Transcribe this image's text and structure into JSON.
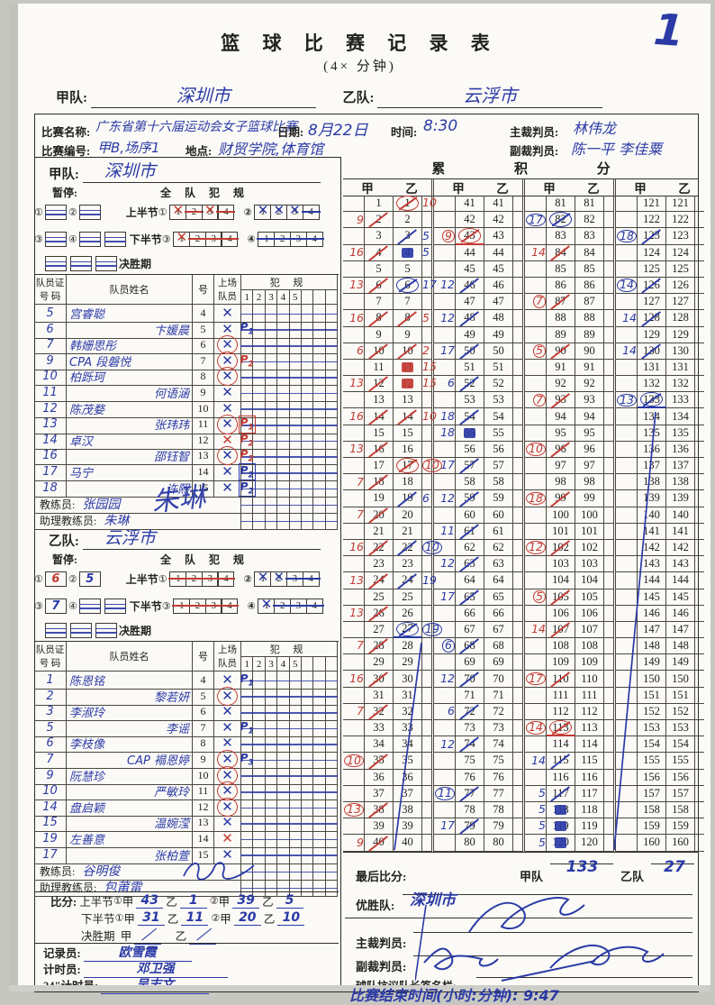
{
  "page": {
    "number": "1"
  },
  "header": {
    "title": "篮 球 比 赛 记 录 表",
    "subtitle": "(4×    分钟)",
    "team_a_label": "甲队:",
    "team_a": "深圳市",
    "team_b_label": "乙队:",
    "team_b": "云浮市"
  },
  "match_info": {
    "name_label": "比赛名称:",
    "name": "广东省第十六届运动会女子篮球比赛",
    "date_label": "日期:",
    "date": "8月22日",
    "time_label": "时间:",
    "time": "8:30",
    "referee_label": "主裁判员:",
    "referee": "林伟龙",
    "number_label": "比赛编号:",
    "number": "甲B,场序1",
    "venue_label": "地点:",
    "venue": "财贸学院,体育馆",
    "umpire_label": "副裁判员:",
    "umpire": "陈一平  李佳粟"
  },
  "labels": {
    "timeout": "暂停:",
    "team_fouls": "全 队 犯 规",
    "half1": "上半节",
    "half2": "下半节",
    "c1": "①",
    "c2": "②",
    "c3": "③",
    "c4": "④",
    "ot": "决胜期",
    "coach": "教练员:",
    "assistant": "助理教练员:"
  },
  "roster_headers": {
    "cert1": "队员证",
    "cert2": "号 码",
    "name": "队员姓名",
    "num": "号",
    "played1": "上场",
    "played2": "队员",
    "fouls": "犯  规",
    "foul_cols": [
      "1",
      "2",
      "3",
      "4",
      "5",
      "",
      "",
      ""
    ]
  },
  "team_a": {
    "label": "甲队:",
    "name": "深圳市",
    "timeouts_r1": [
      {
        "v": "",
        "struck": true
      },
      {
        "v": "",
        "struck": true
      }
    ],
    "timeouts_r2": [
      {
        "v": "",
        "struck": true
      },
      {
        "v": "",
        "struck": true
      },
      {
        "v": "",
        "struck": true
      }
    ],
    "timeouts_ot": [
      {
        "v": "",
        "struck": true
      },
      {
        "v": "",
        "struck": true
      },
      {
        "v": "",
        "struck": true
      }
    ],
    "team_fouls_q1": [
      "xr",
      "-r",
      "xr",
      "-r"
    ],
    "team_fouls_q2": [
      "xb",
      "xb",
      "xb",
      "-b"
    ],
    "team_fouls_q3": [
      "xr",
      "-r",
      "-r",
      "-r"
    ],
    "team_fouls_q4": [
      "-b",
      "-b",
      "-b",
      "-b"
    ],
    "players": [
      {
        "cert": "5",
        "name": "宫睿聪",
        "num": "4",
        "x": "b",
        "ring": false,
        "foul": "",
        "fc": "",
        "fb": false,
        "align": "l"
      },
      {
        "cert": "6",
        "name": "卞媛晨",
        "num": "5",
        "x": "b",
        "ring": false,
        "foul": "P1",
        "fc": "b",
        "fb": false,
        "align": "r"
      },
      {
        "cert": "7",
        "name": "韩姗思彤",
        "num": "6",
        "x": "b",
        "ring": true,
        "foul": "",
        "fc": "",
        "fb": false,
        "align": "l"
      },
      {
        "cert": "9",
        "name": "CPA 段磐悦",
        "num": "7",
        "x": "b",
        "ring": true,
        "foul": "P2",
        "fc": "r",
        "fb": false,
        "align": "l"
      },
      {
        "cert": "10",
        "name": "柏跞珂",
        "num": "8",
        "x": "b",
        "ring": true,
        "foul": "",
        "fc": "",
        "fb": false,
        "align": "l"
      },
      {
        "cert": "11",
        "name": "何语涵",
        "num": "9",
        "x": "b",
        "ring": false,
        "foul": "",
        "fc": "",
        "fb": false,
        "align": "r"
      },
      {
        "cert": "12",
        "name": "陈茂婺",
        "num": "10",
        "x": "b",
        "ring": false,
        "foul": "",
        "fc": "",
        "fb": false,
        "align": "l"
      },
      {
        "cert": "13",
        "name": "张玮玮",
        "num": "11",
        "x": "b",
        "ring": true,
        "foul": "P1",
        "fc": "r",
        "fb": true,
        "align": "r"
      },
      {
        "cert": "14",
        "name": "卓汉",
        "num": "12",
        "x": "r",
        "ring": false,
        "foul": "P2",
        "fc": "r",
        "fb": false,
        "align": "l"
      },
      {
        "cert": "16",
        "name": "邵钰智",
        "num": "13",
        "x": "b",
        "ring": true,
        "foul": "P2",
        "fc": "r",
        "fb": false,
        "align": "r"
      },
      {
        "cert": "17",
        "name": "马宁",
        "num": "14",
        "x": "b",
        "ring": false,
        "foul": "P2",
        "fc": "b",
        "fb": true,
        "align": "l"
      },
      {
        "cert": "18",
        "name": "许熙",
        "num": "15",
        "x": "b",
        "ring": false,
        "foul": "P2",
        "fc": "b",
        "fb": true,
        "align": "r"
      }
    ],
    "coach": "张园园",
    "assistant": "朱琳",
    "signature": "朱琳"
  },
  "team_b": {
    "label": "乙队:",
    "name": "云浮市",
    "timeouts_r1": [
      {
        "v": "6",
        "c": "r",
        "struck": false
      },
      {
        "v": "5",
        "c": "b",
        "struck": false
      }
    ],
    "timeouts_r2": [
      {
        "v": "7",
        "c": "b",
        "struck": false
      },
      {
        "v": "",
        "struck": true
      },
      {
        "v": "",
        "struck": true
      }
    ],
    "timeouts_ot": [
      {
        "v": "",
        "struck": true
      },
      {
        "v": "",
        "struck": true
      },
      {
        "v": "",
        "struck": true
      }
    ],
    "team_fouls_q1": [
      "-r",
      "-r",
      "-r",
      "-r"
    ],
    "team_fouls_q2": [
      "xb",
      "xb",
      "-b",
      "-b"
    ],
    "team_fouls_q3": [
      "-r",
      "-r",
      "-r",
      "-r"
    ],
    "team_fouls_q4": [
      "xb",
      "-b",
      "-b",
      "-b"
    ],
    "players": [
      {
        "cert": "1",
        "name": "陈恩铭",
        "num": "4",
        "x": "b",
        "ring": false,
        "foul": "P1",
        "fc": "b",
        "fb": false,
        "align": "l"
      },
      {
        "cert": "2",
        "name": "黎若妍",
        "num": "5",
        "x": "b",
        "ring": true,
        "foul": "",
        "fc": "",
        "fb": false,
        "align": "r"
      },
      {
        "cert": "3",
        "name": "李淑玲",
        "num": "6",
        "x": "b",
        "ring": false,
        "foul": "",
        "fc": "",
        "fb": false,
        "align": "l"
      },
      {
        "cert": "5",
        "name": "李谣",
        "num": "7",
        "x": "b",
        "ring": false,
        "foul": "P1",
        "fc": "b",
        "fb": false,
        "align": "r"
      },
      {
        "cert": "6",
        "name": "李枝像",
        "num": "8",
        "x": "b",
        "ring": false,
        "foul": "",
        "fc": "",
        "fb": false,
        "align": "l"
      },
      {
        "cert": "7",
        "name": "CAP 褟恩婷",
        "num": "9",
        "x": "b",
        "ring": true,
        "foul": "P3",
        "fc": "b",
        "fb": false,
        "align": "r"
      },
      {
        "cert": "9",
        "name": "阮慧珍",
        "num": "10",
        "x": "b",
        "ring": true,
        "foul": "",
        "fc": "",
        "fb": false,
        "align": "l"
      },
      {
        "cert": "10",
        "name": "严敏玲",
        "num": "11",
        "x": "b",
        "ring": true,
        "foul": "",
        "fc": "",
        "fb": false,
        "align": "r"
      },
      {
        "cert": "14",
        "name": "盘启颖",
        "num": "12",
        "x": "b",
        "ring": true,
        "foul": "",
        "fc": "",
        "fb": false,
        "align": "l"
      },
      {
        "cert": "15",
        "name": "温婉滢",
        "num": "13",
        "x": "b",
        "ring": false,
        "foul": "",
        "fc": "",
        "fb": false,
        "align": "r"
      },
      {
        "cert": "19",
        "name": "左善意",
        "num": "14",
        "x": "r",
        "ring": false,
        "foul": "",
        "fc": "",
        "fb": false,
        "align": "l"
      },
      {
        "cert": "17",
        "name": "张柏萱",
        "num": "15",
        "x": "b",
        "ring": false,
        "foul": "",
        "fc": "",
        "fb": false,
        "align": "r"
      }
    ],
    "coach": "谷明俊",
    "assistant": "包莆雷",
    "signature": ""
  },
  "score_table": {
    "title": "累  积  分",
    "col_a": "甲",
    "col_b": "乙",
    "marks": {
      "1": {
        "b": "cr",
        "r": "10",
        "rc": "r"
      },
      "2": {
        "l": "9",
        "lc": "r",
        "a": "sr"
      },
      "3": {
        "b": "sb",
        "r": "5",
        "rc": "b"
      },
      "4": {
        "l": "16",
        "lc": "r",
        "a": "sr",
        "b": "fb",
        "r": "5",
        "rc": "b"
      },
      "6": {
        "l": "13",
        "lc": "r",
        "a": "sr",
        "b": "cb",
        "r": "17",
        "rc": "b"
      },
      "8": {
        "l": "16",
        "lc": "r",
        "a": "sr",
        "b": "sr",
        "r": "5",
        "rc": "r"
      },
      "10": {
        "l": "6",
        "lc": "r",
        "a": "sr",
        "b": "sr",
        "r": "2",
        "rc": "r"
      },
      "11": {
        "b": "fr",
        "r": "15",
        "rc": "r"
      },
      "12": {
        "l": "13",
        "lc": "r",
        "a": "sr",
        "b": "fr",
        "r": "15",
        "rc": "r"
      },
      "14": {
        "l": "16",
        "lc": "r",
        "a": "sr",
        "b": "sr",
        "r": "10",
        "rc": "r"
      },
      "16": {
        "l": "13",
        "lc": "r",
        "a": "sr"
      },
      "17": {
        "b": "cr",
        "r": "10",
        "rc": "r",
        "ro": true
      },
      "18": {
        "l": "7",
        "lc": "r",
        "a": "sr"
      },
      "19": {
        "b": "sb",
        "r": "6",
        "rc": "b"
      },
      "20": {
        "l": "7",
        "lc": "r",
        "a": "sr"
      },
      "22": {
        "l": "16",
        "lc": "r",
        "a": "sr",
        "b": "sb",
        "r": "10",
        "rc": "b",
        "ro": true
      },
      "24": {
        "l": "13",
        "lc": "r",
        "a": "sr",
        "b": "sb",
        "r": "19",
        "rc": "b"
      },
      "26": {
        "l": "13",
        "lc": "r",
        "a": "sr"
      },
      "27": {
        "b": "cb",
        "r": "19",
        "rc": "b",
        "ro": true,
        "u": "b",
        "us": "b"
      },
      "28": {
        "l": "7",
        "lc": "r",
        "a": "sr"
      },
      "30": {
        "l": "16",
        "lc": "r",
        "a": "sr"
      },
      "32": {
        "l": "7",
        "lc": "r",
        "a": "sr"
      },
      "35": {
        "l": "10",
        "lc": "r",
        "lo": true,
        "a": "sr"
      },
      "38": {
        "l": "13",
        "lc": "r",
        "lo": true,
        "a": "sr"
      },
      "40": {
        "l": "9",
        "lc": "r",
        "a": "sr"
      },
      "43": {
        "l": "9",
        "lc": "r",
        "lo": true,
        "a": "cr",
        "u": "r",
        "us": "a"
      },
      "46": {
        "l": "12",
        "lc": "b",
        "a": "sb"
      },
      "48": {
        "l": "12",
        "lc": "b",
        "a": "sb"
      },
      "50": {
        "l": "17",
        "lc": "b",
        "a": "sb"
      },
      "52": {
        "l": "6",
        "lc": "b",
        "a": "sb"
      },
      "54": {
        "l": "18",
        "lc": "b",
        "a": "sb"
      },
      "55": {
        "l": "18",
        "lc": "b",
        "a": "fb"
      },
      "57": {
        "l": "17",
        "lc": "b",
        "a": "sb"
      },
      "59": {
        "l": "12",
        "lc": "b",
        "a": "sb"
      },
      "61": {
        "l": "11",
        "lc": "b",
        "a": "sb"
      },
      "63": {
        "l": "12",
        "lc": "b",
        "a": "sb"
      },
      "65": {
        "l": "17",
        "lc": "b",
        "a": "sb"
      },
      "68": {
        "l": "6",
        "lc": "b",
        "lo": true,
        "a": "sb"
      },
      "70": {
        "l": "12",
        "lc": "b",
        "a": "sb"
      },
      "72": {
        "l": "6",
        "lc": "b",
        "a": "sb"
      },
      "74": {
        "l": "12",
        "lc": "b",
        "a": "sb"
      },
      "77": {
        "l": "11",
        "lc": "b",
        "lo": true,
        "a": "sb"
      },
      "79": {
        "l": "17",
        "lc": "b",
        "a": "sb"
      },
      "82": {
        "l": "17",
        "lc": "b",
        "lo": true,
        "a": "cb"
      },
      "84": {
        "l": "14",
        "lc": "r",
        "a": "sr"
      },
      "87": {
        "l": "7",
        "lc": "r",
        "lo": true,
        "a": "sr"
      },
      "90": {
        "l": "5",
        "lc": "r",
        "lo": true,
        "a": "sr"
      },
      "93": {
        "l": "7",
        "lc": "r",
        "lo": true,
        "a": "sr"
      },
      "96": {
        "l": "10",
        "lc": "r",
        "lo": true,
        "a": "sr"
      },
      "99": {
        "l": "18",
        "lc": "r",
        "lo": true,
        "a": "sr"
      },
      "102": {
        "l": "12",
        "lc": "r",
        "lo": true,
        "a": "sr"
      },
      "105": {
        "l": "5",
        "lc": "r",
        "lo": true,
        "a": "sr"
      },
      "107": {
        "l": "14",
        "lc": "r",
        "a": "sr"
      },
      "110": {
        "l": "17",
        "lc": "r",
        "lo": true,
        "a": "sr"
      },
      "113": {
        "l": "14",
        "lc": "r",
        "lo": true,
        "a": "cr",
        "u": "r",
        "us": "a"
      },
      "115": {
        "l": "14",
        "lc": "b",
        "a": "sb"
      },
      "117": {
        "l": "5",
        "lc": "b",
        "a": "sb"
      },
      "118": {
        "l": "5",
        "lc": "b",
        "a": "fb"
      },
      "119": {
        "l": "5",
        "lc": "b",
        "a": "fb"
      },
      "120": {
        "l": "5",
        "lc": "b",
        "a": "fb"
      },
      "123": {
        "l": "18",
        "lc": "b",
        "lo": true,
        "a": "sb"
      },
      "126": {
        "l": "14",
        "lc": "b",
        "lo": true,
        "a": "sb"
      },
      "128": {
        "l": "14",
        "lc": "b",
        "a": "sb"
      },
      "130": {
        "l": "14",
        "lc": "b",
        "a": "sb"
      },
      "133": {
        "l": "13",
        "lc": "b",
        "lo": true,
        "a": "cb",
        "u": "b",
        "us": "a"
      }
    }
  },
  "score_summary": {
    "label": "比分:",
    "jia": "甲",
    "yi": "乙",
    "q1a": "43",
    "q1b": "1",
    "q2a": "39",
    "q2b": "5",
    "q3a": "31",
    "q3b": "11",
    "q4a": "20",
    "q4b": "10",
    "ota": "／",
    "otb": "／"
  },
  "officials": {
    "scorer_label": "记录员:",
    "scorer": "欧雪霞",
    "timer_label": "计时员:",
    "timer": "邓卫强",
    "shot_label": "24\"计时员:",
    "shot": "吴志文"
  },
  "result": {
    "final_label": "最后比分:",
    "team_a_label": "甲队",
    "team_a_score": "133",
    "team_b_label": "乙队",
    "team_b_score": "27",
    "winner_label": "优胜队:",
    "winner": "深圳市",
    "referee_label": "主裁判员:",
    "umpire_label": "副裁判员:",
    "protest_label": "球队抗议队长签名栏:",
    "end_time": "比赛结束时间(小时:分钟): 9:47"
  }
}
